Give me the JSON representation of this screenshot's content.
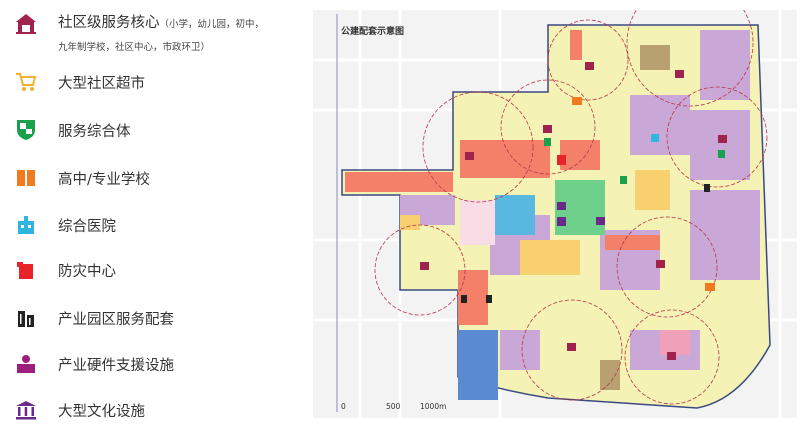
{
  "legend": {
    "items": [
      {
        "label": "社区级服务核心",
        "note_line1": "（小学，幼儿园，初中，",
        "note_line2": "九年制学校，社区中心，市政环卫）",
        "icon": "community-core-icon",
        "color": "#a0234e"
      },
      {
        "label": "大型社区超市",
        "icon": "shopping-cart-icon",
        "color": "#f0b030"
      },
      {
        "label": "服务综合体",
        "icon": "shield-icon",
        "color": "#1aa04a"
      },
      {
        "label": "高中/专业学校",
        "icon": "book-icon",
        "color": "#f07a1e"
      },
      {
        "label": "综合医院",
        "icon": "hospital-icon",
        "color": "#2fb6e0"
      },
      {
        "label": "防灾中心",
        "icon": "disaster-center-icon",
        "color": "#e8232a"
      },
      {
        "label": "产业园区服务配套",
        "icon": "office-building-icon",
        "color": "#222222"
      },
      {
        "label": "产业硬件支援设施",
        "icon": "industrial-support-icon",
        "color": "#9b1f7c"
      },
      {
        "label": "大型文化设施",
        "icon": "culture-building-icon",
        "color": "#6a2a8a"
      }
    ]
  },
  "map": {
    "title": "公建配套示意图",
    "scale": [
      "0",
      "500",
      "1000m"
    ],
    "colors": {
      "residential": "#f4f2b4",
      "commercial": "#f4806a",
      "industrial": "#c9a8d8",
      "green": "#6fd08c",
      "water": "#58b8e0",
      "boundary": "#3a4a80",
      "service_radius": "#b8344a"
    }
  }
}
